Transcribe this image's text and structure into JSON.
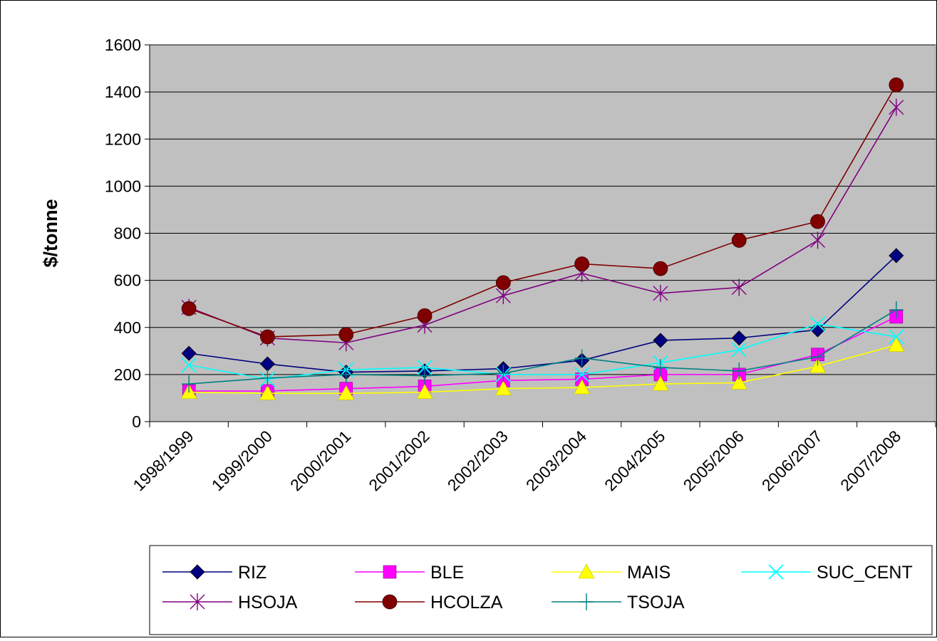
{
  "chart_data": {
    "type": "line",
    "title": "",
    "xlabel": "",
    "ylabel": "$/tonne",
    "ylim": [
      0,
      1600
    ],
    "yticks": [
      0,
      200,
      400,
      600,
      800,
      1000,
      1200,
      1400,
      1600
    ],
    "grid": "horizontal",
    "legend_position": "bottom",
    "categories": [
      "1998/1999",
      "1999/2000",
      "2000/2001",
      "2001/2002",
      "2002/2003",
      "2003/2004",
      "2004/2005",
      "2005/2006",
      "2006/2007",
      "2007/2008"
    ],
    "series": [
      {
        "name": "RIZ",
        "color": "#000080",
        "marker": "diamond",
        "values": [
          290,
          245,
          210,
          215,
          225,
          260,
          345,
          355,
          390,
          705
        ]
      },
      {
        "name": "BLE",
        "color": "#ff00ff",
        "marker": "square",
        "values": [
          130,
          130,
          140,
          150,
          175,
          180,
          200,
          200,
          285,
          445
        ]
      },
      {
        "name": "MAIS",
        "color": "#ffff00",
        "marker": "triangle",
        "values": [
          125,
          120,
          120,
          125,
          140,
          145,
          160,
          165,
          235,
          325
        ]
      },
      {
        "name": "SUC_CENT",
        "color": "#00ffff",
        "marker": "x",
        "values": [
          240,
          180,
          220,
          230,
          200,
          200,
          250,
          305,
          415,
          360
        ]
      },
      {
        "name": "HSOJA",
        "color": "#800080",
        "marker": "star",
        "values": [
          485,
          355,
          335,
          410,
          535,
          630,
          545,
          570,
          770,
          1335
        ]
      },
      {
        "name": "HCOLZA",
        "color": "#800000",
        "marker": "circle",
        "values": [
          480,
          360,
          370,
          450,
          590,
          670,
          650,
          770,
          850,
          1430
        ]
      },
      {
        "name": "TSOJA",
        "color": "#008080",
        "marker": "plus",
        "values": [
          160,
          185,
          200,
          195,
          205,
          270,
          230,
          215,
          275,
          475
        ]
      }
    ]
  }
}
